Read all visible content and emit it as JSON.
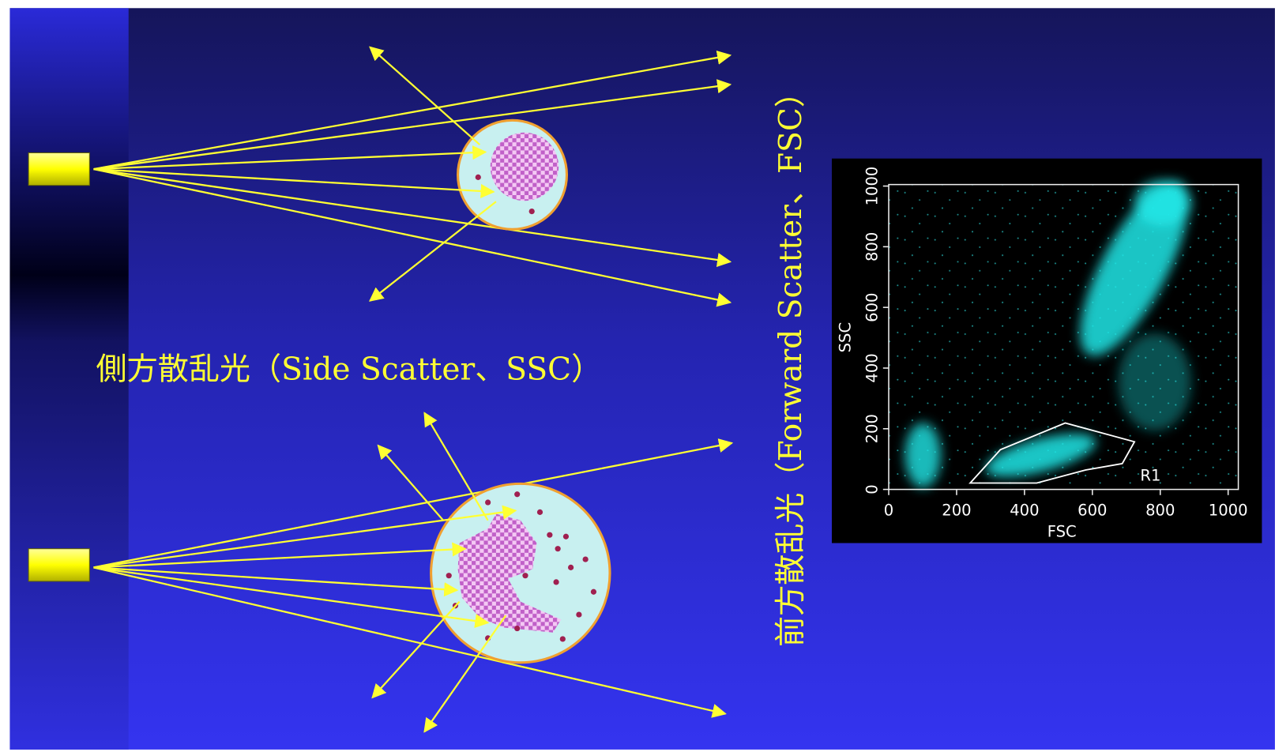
{
  "side_scatter_label": "側方散乱光（Side Scatter、SSC）",
  "forward_scatter_label": "前方散乱光（Forward Scatter、FSC）",
  "plot": {
    "x_label": "FSC",
    "y_label": "SSC",
    "xlim": [
      0,
      1030
    ],
    "ylim": [
      0,
      1005
    ],
    "xticks": [
      0,
      200,
      400,
      600,
      800,
      1000
    ],
    "yticks": [
      0,
      200,
      400,
      600,
      800,
      1000
    ],
    "gate": {
      "label": "R1",
      "points": [
        [
          240,
          21
        ],
        [
          329,
          131
        ],
        [
          520,
          219
        ],
        [
          724,
          157
        ],
        [
          688,
          85
        ],
        [
          580,
          64
        ],
        [
          436,
          21
        ]
      ]
    }
  }
}
